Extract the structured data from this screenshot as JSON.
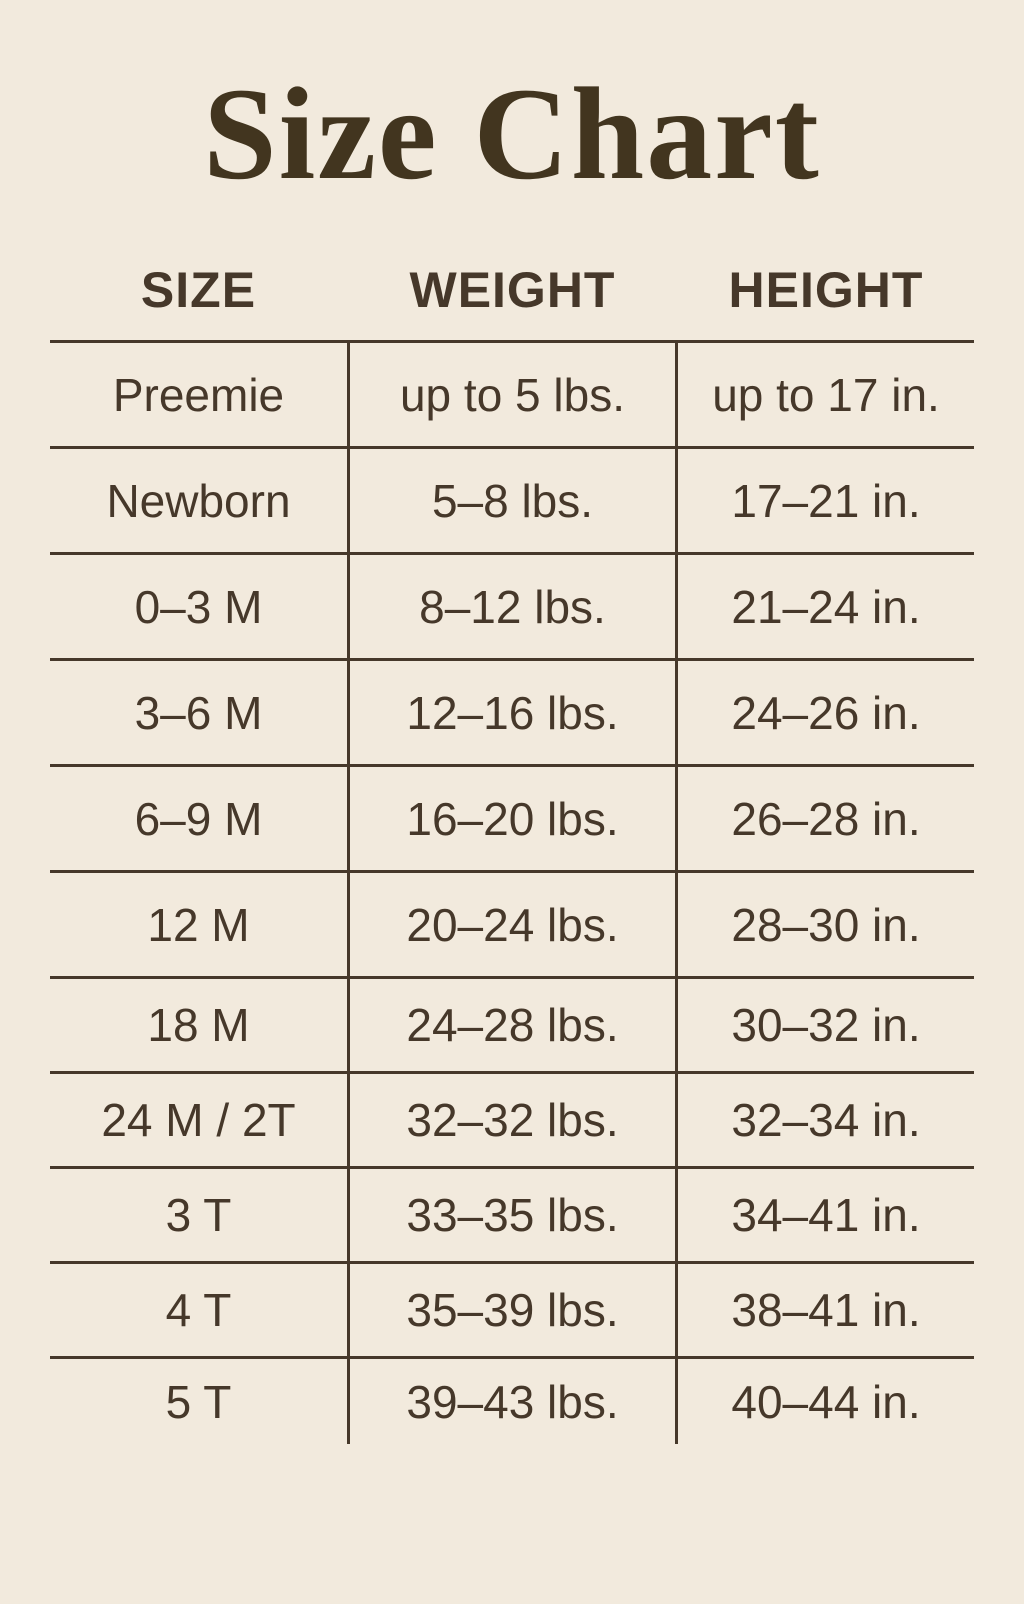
{
  "page": {
    "background_color": "#f2eadd",
    "ink_color": "#46382a"
  },
  "title": "Size Chart",
  "table": {
    "columns": [
      "SIZE",
      "WEIGHT",
      "HEIGHT"
    ],
    "rows": [
      {
        "size": "Preemie",
        "weight": "up to 5 lbs.",
        "height": "up to 17 in."
      },
      {
        "size": "Newborn",
        "weight": "5–8 lbs.",
        "height": "17–21 in."
      },
      {
        "size": "0–3 M",
        "weight": "8–12 lbs.",
        "height": "21–24 in."
      },
      {
        "size": "3–6 M",
        "weight": "12–16 lbs.",
        "height": "24–26 in."
      },
      {
        "size": "6–9 M",
        "weight": "16–20 lbs.",
        "height": "26–28 in."
      },
      {
        "size": "12 M",
        "weight": "20–24 lbs.",
        "height": "28–30 in."
      },
      {
        "size": "18 M",
        "weight": "24–28 lbs.",
        "height": "30–32 in."
      },
      {
        "size": "24 M / 2T",
        "weight": "32–32 lbs.",
        "height": "32–34 in."
      },
      {
        "size": "3 T",
        "weight": "33–35 lbs.",
        "height": "34–41 in."
      },
      {
        "size": "4 T",
        "weight": "35–39 lbs.",
        "height": "38–41 in."
      },
      {
        "size": "5 T",
        "weight": "39–43 lbs.",
        "height": "40–44 in."
      }
    ]
  }
}
